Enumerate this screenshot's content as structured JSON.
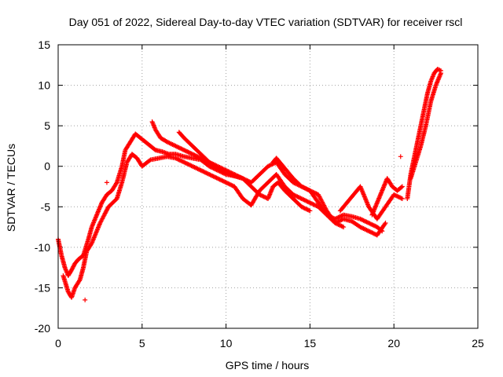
{
  "chart_data": {
    "type": "scatter",
    "title": "Day 051 of 2022, Sidereal Day-to-day VTEC variation (SDTVAR) for receiver rscl",
    "xlabel": "GPS time / hours",
    "ylabel": "SDTVAR / TECUs",
    "xlim": [
      0,
      25
    ],
    "ylim": [
      -20,
      15
    ],
    "xticks": [
      0,
      5,
      10,
      15,
      20,
      25
    ],
    "xtick_labels": [
      "0",
      "5",
      "10",
      "15",
      "20",
      "25"
    ],
    "yticks": [
      -20,
      -15,
      -10,
      -5,
      0,
      5,
      10,
      15
    ],
    "ytick_labels": [
      "-20",
      "-15",
      "-10",
      "-5",
      "0",
      "5",
      "10",
      "15"
    ],
    "grid": true,
    "marker": "+",
    "color": "#ff0000",
    "series": [
      {
        "name": "track-a",
        "x": [
          0.0,
          0.2,
          0.4,
          0.6,
          0.8,
          1.0,
          1.2,
          1.5,
          1.8,
          2.0,
          2.3,
          2.6,
          2.9,
          3.2,
          3.5,
          3.8,
          4.0,
          4.3,
          4.6,
          4.9,
          5.2,
          5.5,
          5.8,
          6.2,
          6.6,
          7.0,
          7.5,
          8.0,
          8.5,
          9.0,
          9.5,
          10.0,
          10.5,
          11.0,
          11.5,
          12.0,
          12.5,
          13.0,
          13.5,
          14.0,
          14.5,
          15.0,
          15.5,
          16.0,
          16.5,
          17.0,
          17.5,
          18.0,
          18.5,
          19.0,
          19.3
        ],
        "y": [
          -9.0,
          -11.0,
          -12.5,
          -13.5,
          -12.8,
          -12.0,
          -11.5,
          -11.0,
          -9.0,
          -7.5,
          -6.0,
          -4.5,
          -3.5,
          -3.0,
          -2.0,
          0.0,
          2.0,
          3.0,
          4.0,
          3.5,
          3.0,
          2.5,
          2.0,
          1.8,
          1.5,
          1.5,
          1.2,
          1.0,
          0.8,
          0.0,
          -0.5,
          -1.0,
          -1.2,
          -1.5,
          -2.0,
          -1.0,
          0.0,
          0.5,
          -1.0,
          -2.0,
          -2.5,
          -3.0,
          -4.5,
          -6.0,
          -6.5,
          -6.0,
          -6.2,
          -6.5,
          -7.0,
          -7.5,
          -8.0
        ]
      },
      {
        "name": "track-b",
        "x": [
          0.3,
          0.6,
          0.8,
          1.0,
          1.3,
          1.5,
          1.7,
          2.0,
          2.5,
          3.0,
          3.5,
          3.8,
          4.1,
          4.4,
          4.7,
          5.0,
          5.5,
          6.0,
          6.5,
          7.0,
          7.5,
          8.0,
          8.5,
          9.0,
          9.5,
          10.0,
          10.5,
          11.0,
          11.5,
          12.0,
          12.5,
          13.0,
          13.5,
          14.0,
          14.5,
          15.0,
          15.5,
          16.0,
          16.5,
          17.0,
          17.5,
          18.0,
          18.5,
          19.0,
          19.5
        ],
        "y": [
          -13.5,
          -15.5,
          -16.2,
          -15.0,
          -14.0,
          -12.5,
          -10.5,
          -9.5,
          -7.0,
          -5.0,
          -4.0,
          -2.0,
          0.5,
          1.5,
          1.0,
          0.0,
          0.8,
          1.0,
          1.2,
          1.0,
          0.5,
          0.0,
          -0.5,
          -1.0,
          -1.5,
          -2.0,
          -2.5,
          -4.0,
          -4.8,
          -3.0,
          -2.0,
          -1.0,
          -2.5,
          -3.5,
          -4.0,
          -4.5,
          -5.0,
          -6.0,
          -7.0,
          -6.5,
          -6.8,
          -7.5,
          -8.0,
          -8.5,
          -7.0
        ]
      },
      {
        "name": "track-c",
        "x": [
          5.6,
          5.8,
          6.1,
          6.5,
          7.0,
          7.5,
          8.0,
          8.5,
          9.0,
          9.5,
          10.0,
          10.5,
          11.0,
          11.5,
          12.0,
          12.5,
          12.8,
          13.1,
          13.5,
          14.0,
          14.5,
          15.0
        ],
        "y": [
          5.5,
          4.5,
          3.5,
          3.0,
          2.5,
          2.0,
          1.5,
          1.0,
          0.5,
          0.0,
          -0.5,
          -1.0,
          -1.5,
          -2.5,
          -3.5,
          -4.0,
          -2.5,
          -2.0,
          -3.0,
          -4.0,
          -5.0,
          -5.5
        ]
      },
      {
        "name": "track-d",
        "x": [
          7.2,
          7.5,
          8.0,
          8.5,
          9.0,
          9.5,
          10.0,
          10.5,
          11.0
        ],
        "y": [
          4.2,
          3.5,
          2.5,
          1.5,
          0.5,
          -0.2,
          -0.8,
          -1.2,
          -1.5
        ]
      },
      {
        "name": "track-e",
        "x": [
          12.8,
          13.0,
          13.2,
          13.6,
          14.0,
          14.5,
          15.0,
          15.5,
          16.0,
          16.5,
          17.0
        ],
        "y": [
          0.5,
          1.0,
          0.5,
          -0.5,
          -1.5,
          -2.5,
          -3.0,
          -3.5,
          -5.5,
          -7.0,
          -7.5
        ]
      },
      {
        "name": "track-f",
        "x": [
          16.8,
          17.2,
          17.6,
          18.0,
          18.5,
          19.0,
          19.5,
          20.0,
          20.5
        ],
        "y": [
          -5.5,
          -4.5,
          -3.5,
          -2.5,
          -5.0,
          -6.5,
          -5.0,
          -3.5,
          -4.0
        ]
      },
      {
        "name": "track-g",
        "x": [
          18.7,
          19.0,
          19.3,
          19.6,
          19.9,
          20.2,
          20.5
        ],
        "y": [
          -6.0,
          -4.5,
          -3.0,
          -1.5,
          -2.5,
          -3.0,
          -2.5
        ]
      },
      {
        "name": "track-h",
        "x": [
          20.8,
          21.0,
          21.2,
          21.4,
          21.6,
          21.8,
          22.0,
          22.2,
          22.4,
          22.6,
          22.8
        ],
        "y": [
          -4.0,
          -1.0,
          1.0,
          3.0,
          5.0,
          7.0,
          9.0,
          10.5,
          11.5,
          12.0,
          11.8
        ]
      },
      {
        "name": "track-i",
        "x": [
          21.0,
          21.3,
          21.6,
          21.9,
          22.2,
          22.5,
          22.8
        ],
        "y": [
          -1.5,
          0.5,
          2.5,
          5.0,
          8.0,
          10.0,
          11.5
        ]
      }
    ],
    "outliers": {
      "x": [
        1.6,
        2.9,
        20.4
      ],
      "y": [
        -16.5,
        -2.0,
        1.2
      ]
    }
  }
}
